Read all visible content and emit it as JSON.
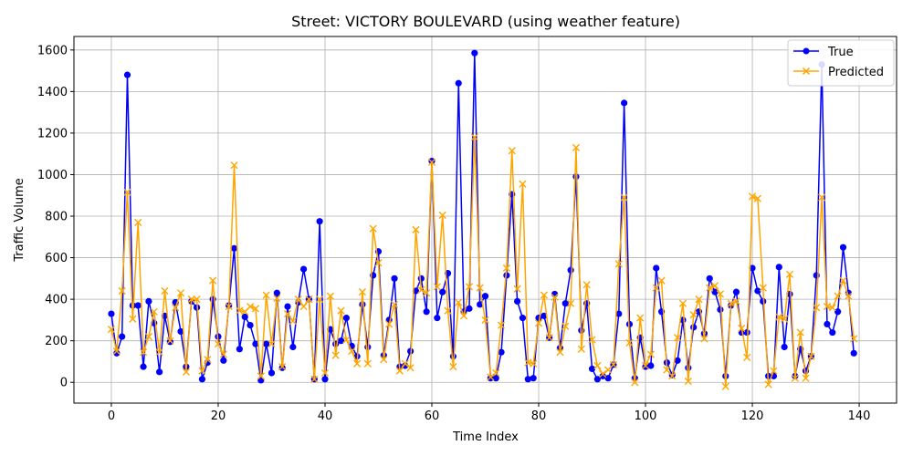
{
  "chart_data": {
    "type": "line",
    "title": "Street: VICTORY BOULEVARD (using weather feature)",
    "xlabel": "Time Index",
    "ylabel": "Traffic Volume",
    "xlim": [
      -7,
      147
    ],
    "ylim": [
      -100,
      1665
    ],
    "xticks": [
      0,
      20,
      40,
      60,
      80,
      100,
      120,
      140
    ],
    "yticks": [
      0,
      200,
      400,
      600,
      800,
      1000,
      1200,
      1400,
      1600
    ],
    "grid": true,
    "legend_position": "top-right",
    "series": [
      {
        "name": "True",
        "color": "#0000ff",
        "marker": "circle",
        "values": [
          330,
          140,
          220,
          1480,
          370,
          370,
          75,
          390,
          285,
          50,
          320,
          195,
          385,
          245,
          75,
          390,
          360,
          15,
          95,
          400,
          220,
          105,
          370,
          645,
          160,
          315,
          275,
          185,
          10,
          185,
          45,
          430,
          70,
          365,
          170,
          385,
          545,
          400,
          15,
          775,
          15,
          255,
          185,
          200,
          310,
          175,
          125,
          375,
          170,
          515,
          630,
          130,
          300,
          500,
          75,
          80,
          150,
          440,
          500,
          340,
          1065,
          310,
          435,
          525,
          125,
          1440,
          340,
          355,
          1585,
          375,
          415,
          20,
          20,
          145,
          515,
          905,
          390,
          310,
          15,
          20,
          310,
          320,
          215,
          425,
          165,
          380,
          540,
          990,
          250,
          380,
          65,
          15,
          30,
          20,
          85,
          330,
          1345,
          280,
          20,
          215,
          75,
          80,
          550,
          340,
          95,
          35,
          105,
          300,
          70,
          265,
          340,
          235,
          500,
          435,
          350,
          30,
          370,
          435,
          240,
          240,
          550,
          440,
          390,
          30,
          30,
          555,
          170,
          425,
          30,
          160,
          55,
          125,
          515,
          1530,
          280,
          240,
          340,
          650,
          430,
          140
        ]
      },
      {
        "name": "Predicted",
        "color": "#ffa500",
        "marker": "x",
        "values": [
          255,
          150,
          440,
          915,
          305,
          770,
          145,
          220,
          340,
          145,
          440,
          200,
          360,
          430,
          50,
          400,
          400,
          55,
          110,
          490,
          185,
          135,
          365,
          1045,
          345,
          340,
          365,
          355,
          30,
          420,
          185,
          405,
          75,
          330,
          295,
          400,
          365,
          400,
          15,
          400,
          45,
          415,
          130,
          345,
          205,
          150,
          90,
          435,
          90,
          740,
          575,
          110,
          280,
          375,
          55,
          90,
          70,
          735,
          445,
          430,
          1060,
          460,
          805,
          345,
          75,
          385,
          320,
          460,
          1180,
          455,
          300,
          25,
          45,
          275,
          550,
          1115,
          450,
          955,
          95,
          90,
          285,
          420,
          215,
          410,
          145,
          270,
          380,
          1130,
          160,
          470,
          205,
          80,
          40,
          60,
          85,
          570,
          890,
          190,
          0,
          310,
          80,
          135,
          455,
          490,
          60,
          30,
          215,
          380,
          5,
          325,
          400,
          210,
          455,
          465,
          425,
          -20,
          380,
          390,
          260,
          120,
          895,
          885,
          455,
          -10,
          55,
          315,
          305,
          520,
          20,
          240,
          20,
          125,
          360,
          890,
          365,
          360,
          415,
          490,
          415,
          210
        ]
      }
    ]
  }
}
